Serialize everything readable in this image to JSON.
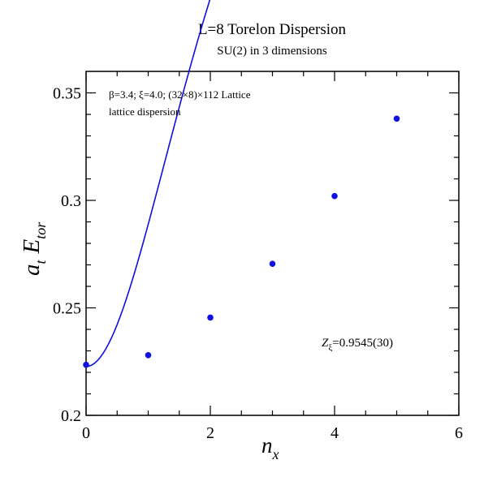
{
  "chart_data": {
    "type": "scatter",
    "title": "L=8 Torelon Dispersion",
    "subtitle": "SU(2) in 3 dimensions",
    "xlabel": {
      "main": "n",
      "sub": "x"
    },
    "ylabel": {
      "a": "a",
      "a_sub": "t",
      "E": "E",
      "E_sub": "tor"
    },
    "xlim": [
      0,
      6
    ],
    "ylim": [
      0.2,
      0.36
    ],
    "x_ticks": [
      0,
      2,
      4,
      6
    ],
    "x_tick_labels": [
      "0",
      "2",
      "4",
      "6"
    ],
    "x_minor_step": 0.5,
    "y_ticks": [
      0.2,
      0.25,
      0.3,
      0.35
    ],
    "y_tick_labels": [
      "0.2",
      "0.25",
      "0.3",
      "0.35"
    ],
    "y_minor_step": 0.01,
    "grid": false,
    "annotations": {
      "line1": "β=3.4;  ξ=4.0; (32×8)×112 Lattice",
      "line2": "lattice dispersion",
      "z_main": "Z",
      "z_sub": "ξ",
      "z_value": "=0.9545(30)"
    },
    "series": [
      {
        "points": [
          {
            "x": 0,
            "y": 0.2235
          },
          {
            "x": 1,
            "y": 0.228
          },
          {
            "x": 2,
            "y": 0.2455
          },
          {
            "x": 3,
            "y": 0.2705
          },
          {
            "x": 4,
            "y": 0.302
          },
          {
            "x": 5,
            "y": 0.338
          }
        ],
        "color": "#1010e0"
      }
    ],
    "fit_curve": {
      "form": "lattice dispersion",
      "E0": 0.2227,
      "Z": 0.9545,
      "xi": 4.0,
      "L": 8,
      "x_range": [
        0,
        5.5
      ],
      "color": "#1010e0"
    }
  }
}
